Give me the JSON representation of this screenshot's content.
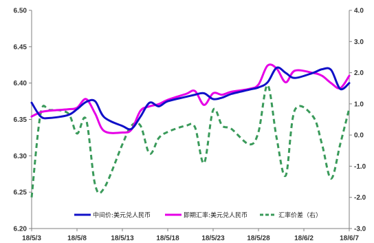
{
  "chart_data": {
    "type": "line",
    "title": "",
    "xlabel": "",
    "ylabel": "",
    "x_ticks": [
      "18/5/3",
      "18/5/8",
      "18/5/13",
      "18/5/18",
      "18/5/23",
      "18/5/28",
      "18/6/2",
      "18/6/7"
    ],
    "x_range": [
      "2018-05-03",
      "2018-06-07"
    ],
    "ylim_left": [
      6.2,
      6.5
    ],
    "yticks_left": [
      "6.20",
      "6.25",
      "6.30",
      "6.35",
      "6.40",
      "6.45",
      "6.50"
    ],
    "ylim_right": [
      -3.0,
      4.0
    ],
    "yticks_right": [
      "-3.0",
      "-2.0",
      "-1.0",
      "0.0",
      "1.0",
      "2.0",
      "3.0",
      "4.0"
    ],
    "grid": false,
    "legend_position": "bottom",
    "series": [
      {
        "name": "中间价:美元兑人民币",
        "axis": "left",
        "color": "#1010c8",
        "style": "solid",
        "points": [
          [
            "2018-05-03",
            6.373
          ],
          [
            "2018-05-04",
            6.354
          ],
          [
            "2018-05-05",
            6.352
          ],
          [
            "2018-05-07",
            6.356
          ],
          [
            "2018-05-08",
            6.364
          ],
          [
            "2018-05-09",
            6.374
          ],
          [
            "2018-05-10",
            6.375
          ],
          [
            "2018-05-11",
            6.353
          ],
          [
            "2018-05-13",
            6.341
          ],
          [
            "2018-05-14",
            6.337
          ],
          [
            "2018-05-15",
            6.354
          ],
          [
            "2018-05-16",
            6.373
          ],
          [
            "2018-05-17",
            6.368
          ],
          [
            "2018-05-18",
            6.375
          ],
          [
            "2018-05-20",
            6.381
          ],
          [
            "2018-05-21",
            6.384
          ],
          [
            "2018-05-22",
            6.386
          ],
          [
            "2018-05-23",
            6.378
          ],
          [
            "2018-05-24",
            6.38
          ],
          [
            "2018-05-25",
            6.385
          ],
          [
            "2018-05-27",
            6.391
          ],
          [
            "2018-05-28",
            6.394
          ],
          [
            "2018-05-29",
            6.401
          ],
          [
            "2018-05-30",
            6.421
          ],
          [
            "2018-05-31",
            6.414
          ],
          [
            "2018-06-01",
            6.407
          ],
          [
            "2018-06-03",
            6.414
          ],
          [
            "2018-06-04",
            6.419
          ],
          [
            "2018-06-05",
            6.418
          ],
          [
            "2018-06-06",
            6.392
          ],
          [
            "2018-06-07",
            6.4
          ]
        ]
      },
      {
        "name": "即期汇率:美元兑人民币",
        "axis": "left",
        "color": "#e600e6",
        "style": "solid",
        "points": [
          [
            "2018-05-03",
            6.354
          ],
          [
            "2018-05-04",
            6.36
          ],
          [
            "2018-05-05",
            6.362
          ],
          [
            "2018-05-07",
            6.364
          ],
          [
            "2018-05-08",
            6.366
          ],
          [
            "2018-05-09",
            6.378
          ],
          [
            "2018-05-10",
            6.358
          ],
          [
            "2018-05-11",
            6.334
          ],
          [
            "2018-05-13",
            6.332
          ],
          [
            "2018-05-14",
            6.336
          ],
          [
            "2018-05-15",
            6.362
          ],
          [
            "2018-05-16",
            6.368
          ],
          [
            "2018-05-17",
            6.371
          ],
          [
            "2018-05-18",
            6.377
          ],
          [
            "2018-05-20",
            6.385
          ],
          [
            "2018-05-21",
            6.389
          ],
          [
            "2018-05-22",
            6.37
          ],
          [
            "2018-05-23",
            6.386
          ],
          [
            "2018-05-24",
            6.384
          ],
          [
            "2018-05-25",
            6.388
          ],
          [
            "2018-05-27",
            6.392
          ],
          [
            "2018-05-28",
            6.398
          ],
          [
            "2018-05-29",
            6.424
          ],
          [
            "2018-05-30",
            6.42
          ],
          [
            "2018-05-31",
            6.401
          ],
          [
            "2018-06-01",
            6.417
          ],
          [
            "2018-06-03",
            6.414
          ],
          [
            "2018-06-04",
            6.41
          ],
          [
            "2018-06-05",
            6.4
          ],
          [
            "2018-06-06",
            6.393
          ],
          [
            "2018-06-07",
            6.41
          ]
        ]
      },
      {
        "name": "汇率价差（右）",
        "axis": "right",
        "color": "#3a9a5a",
        "style": "dashed",
        "points": [
          [
            "2018-05-03",
            -2.0
          ],
          [
            "2018-05-04",
            0.7
          ],
          [
            "2018-05-05",
            0.8
          ],
          [
            "2018-05-07",
            0.7
          ],
          [
            "2018-05-08",
            0.05
          ],
          [
            "2018-05-09",
            0.5
          ],
          [
            "2018-05-10",
            -1.6
          ],
          [
            "2018-05-11",
            -1.7
          ],
          [
            "2018-05-13",
            -0.3
          ],
          [
            "2018-05-14",
            0.3
          ],
          [
            "2018-05-15",
            0.3
          ],
          [
            "2018-05-16",
            -0.6
          ],
          [
            "2018-05-17",
            -0.1
          ],
          [
            "2018-05-18",
            0.1
          ],
          [
            "2018-05-20",
            0.3
          ],
          [
            "2018-05-21",
            0.25
          ],
          [
            "2018-05-22",
            -0.9
          ],
          [
            "2018-05-23",
            0.8
          ],
          [
            "2018-05-24",
            0.3
          ],
          [
            "2018-05-25",
            0.2
          ],
          [
            "2018-05-27",
            -0.3
          ],
          [
            "2018-05-28",
            0.1
          ],
          [
            "2018-05-29",
            1.6
          ],
          [
            "2018-05-30",
            -0.1
          ],
          [
            "2018-05-31",
            -1.3
          ],
          [
            "2018-06-01",
            0.8
          ],
          [
            "2018-06-03",
            0.6
          ],
          [
            "2018-06-04",
            -0.3
          ],
          [
            "2018-06-05",
            -1.4
          ],
          [
            "2018-06-06",
            -0.3
          ],
          [
            "2018-06-07",
            0.85
          ]
        ]
      }
    ]
  }
}
